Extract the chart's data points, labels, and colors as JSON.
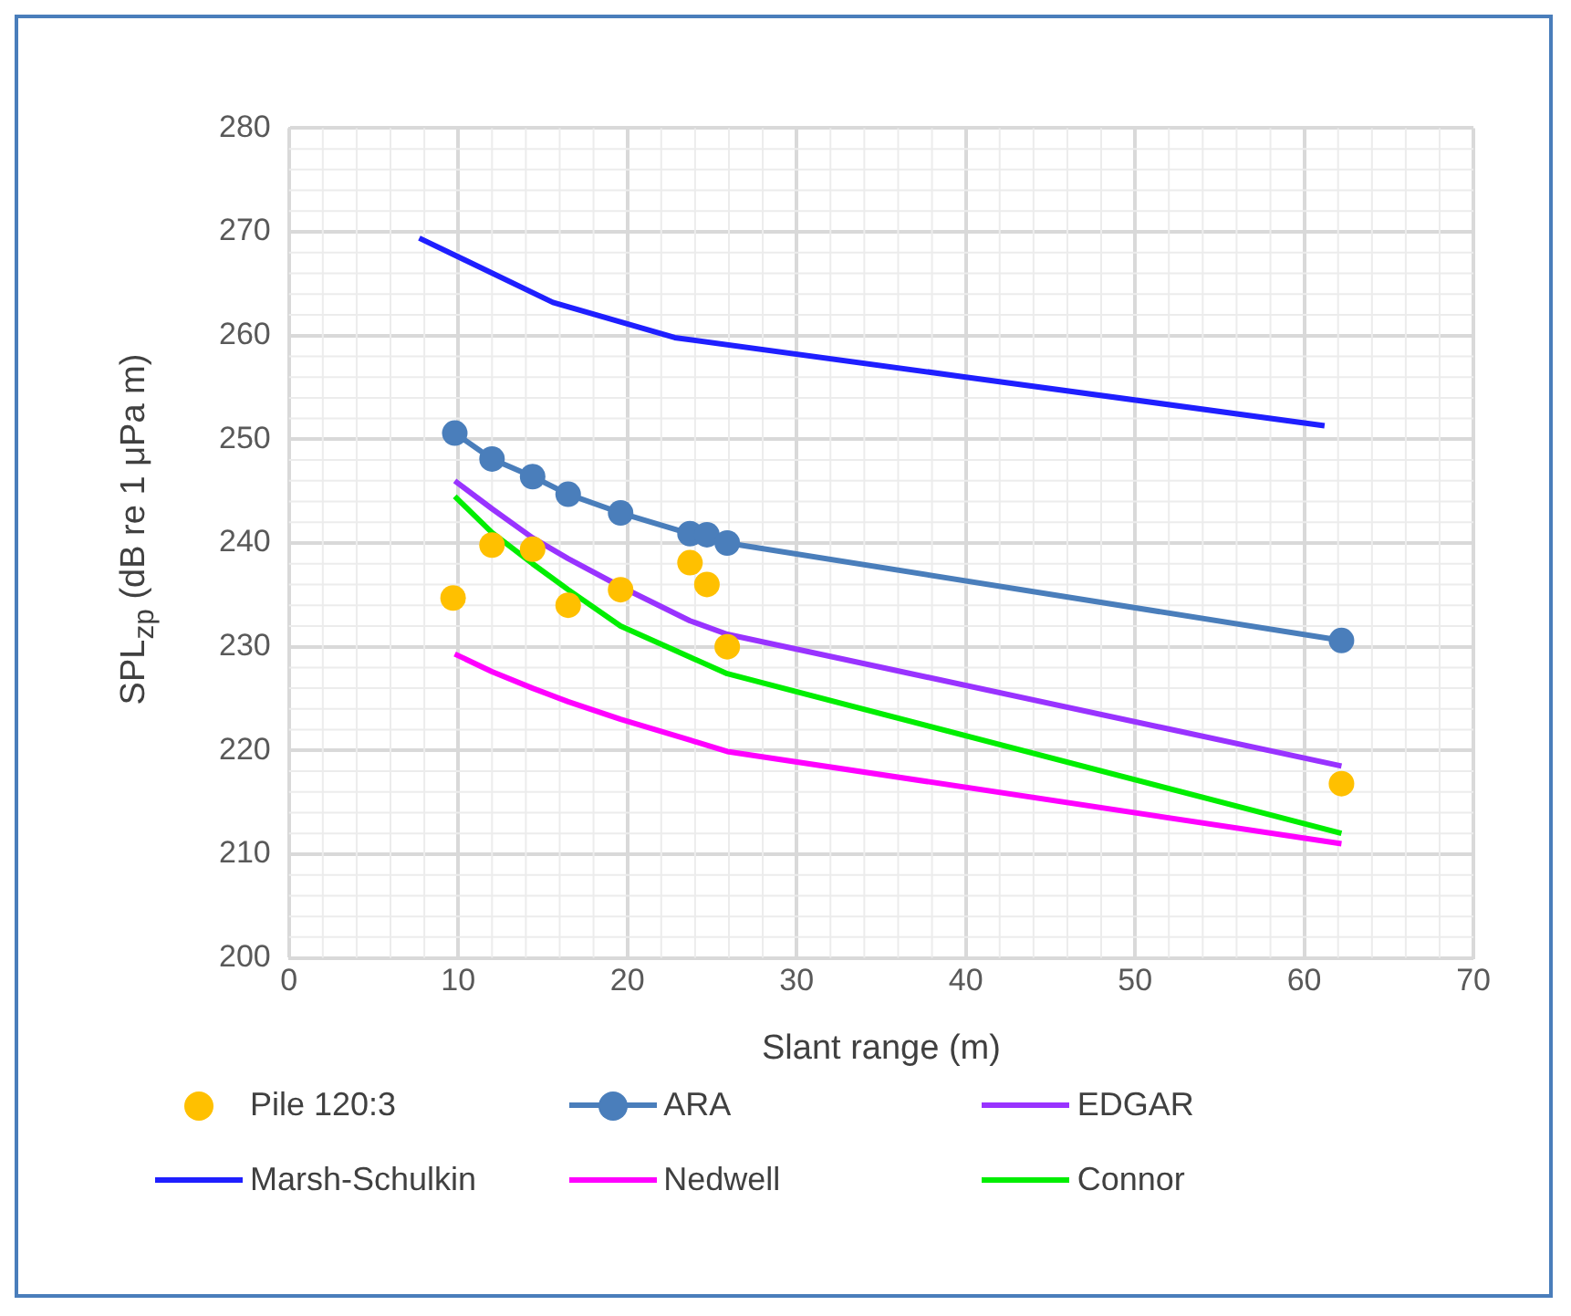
{
  "chart_data": {
    "type": "line",
    "xlabel": "Slant range (m)",
    "ylabel": "SPL$_{zp}$ (dB re 1 μPa m)",
    "xlim": [
      0,
      70
    ],
    "xticks": [
      0,
      10,
      20,
      30,
      40,
      50,
      60,
      70
    ],
    "ylim": [
      200,
      280
    ],
    "yticks": [
      200,
      210,
      220,
      230,
      240,
      250,
      260,
      270,
      280
    ],
    "grid": true,
    "legend": "bottom",
    "line_style": "solid",
    "series": [
      {
        "name": "Pile 120:3",
        "type": "scatter",
        "marker": "circle",
        "color": "#ffc000",
        "x": [
          9.7,
          12.0,
          14.4,
          16.5,
          19.6,
          23.7,
          24.7,
          25.9,
          62.2
        ],
        "values": [
          234.7,
          239.8,
          239.4,
          234.0,
          235.5,
          238.1,
          236.0,
          230.0,
          216.8
        ]
      },
      {
        "name": "ARA",
        "marker": "circle",
        "color": "#4a7ebb",
        "x": [
          9.8,
          12.0,
          14.4,
          16.5,
          19.6,
          23.7,
          24.7,
          25.9,
          62.2
        ],
        "values": [
          250.6,
          248.1,
          246.4,
          244.7,
          242.9,
          240.9,
          240.8,
          240.0,
          230.6
        ]
      },
      {
        "name": "EDGAR",
        "marker": "none",
        "color": "#9933ff",
        "x": [
          9.8,
          12.0,
          14.4,
          16.5,
          19.6,
          23.7,
          25.9,
          62.2
        ],
        "values": [
          246.0,
          243.3,
          240.5,
          238.5,
          235.8,
          232.5,
          231.2,
          218.5
        ]
      },
      {
        "name": "Marsh-Schulkin",
        "marker": "none",
        "color": "#1f1fff",
        "x": [
          7.7,
          15.6,
          22.8,
          40,
          61.2
        ],
        "values": [
          269.4,
          263.2,
          259.8,
          256.0,
          251.3
        ]
      },
      {
        "name": "Nedwell",
        "marker": "none",
        "color": "#ff00ff",
        "x": [
          9.8,
          12.0,
          14.4,
          16.5,
          19.6,
          23.7,
          25.9,
          62.2
        ],
        "values": [
          229.3,
          227.6,
          226.0,
          224.7,
          223.0,
          221.0,
          219.9,
          211.0
        ]
      },
      {
        "name": "Connor",
        "marker": "none",
        "color": "#00ee00",
        "x": [
          9.8,
          12.0,
          14.4,
          16.5,
          19.6,
          23.7,
          25.9,
          62.2
        ],
        "values": [
          244.5,
          241.0,
          238.0,
          235.5,
          232.0,
          229.0,
          227.4,
          212.0
        ]
      }
    ]
  }
}
